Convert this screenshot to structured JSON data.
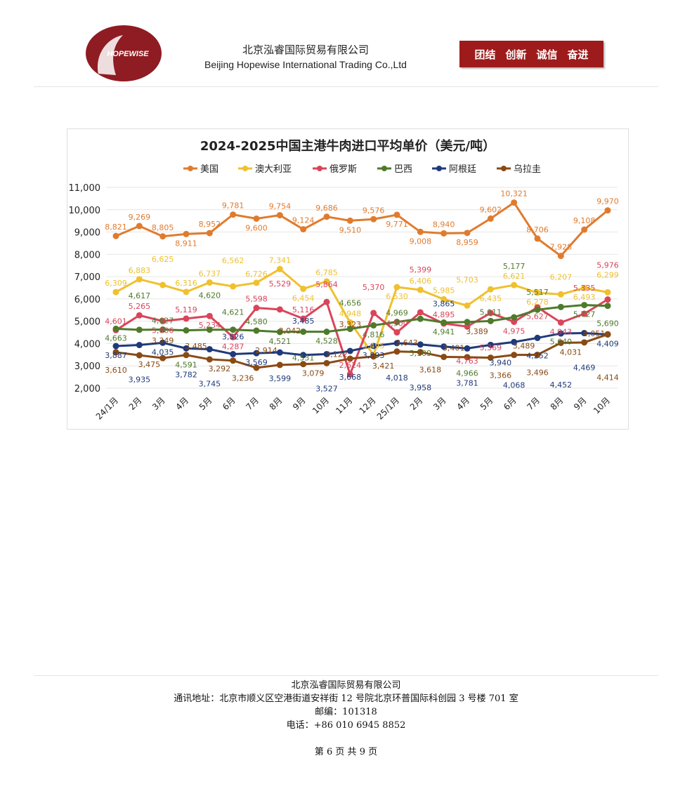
{
  "header": {
    "company_cn": "北京泓睿国际贸易有限公司",
    "company_en": "Beijing Hopewise International Trading Co.,Ltd",
    "logo_text": "HOPEWISE",
    "slogans": [
      "团结",
      "创新",
      "诚信",
      "奋进"
    ]
  },
  "chart_data": {
    "type": "line",
    "title": "2024-2025中国主港牛肉进口平均单价（美元/吨）",
    "legend_position": "top",
    "grid": true,
    "ylim": [
      2000,
      11000
    ],
    "yticks": [
      "2,000",
      "3,000",
      "4,000",
      "5,000",
      "6,000",
      "7,000",
      "8,000",
      "9,000",
      "10,000",
      "11,000"
    ],
    "categories": [
      "24/1月",
      "2月",
      "3月",
      "4月",
      "5月",
      "6月",
      "7月",
      "8月",
      "9月",
      "10月",
      "11月",
      "12月",
      "25/1月",
      "2月",
      "3月",
      "4月",
      "5月",
      "6月",
      "7月",
      "8月",
      "9月",
      "10月"
    ],
    "series": [
      {
        "name": "美国",
        "color": "#e07b2e",
        "label_pos": "above",
        "values": [
          8821,
          9269,
          8805,
          8911,
          8952,
          9781,
          9600,
          9754,
          9124,
          9686,
          9510,
          9576,
          9771,
          9008,
          8940,
          8959,
          9602,
          10321,
          8706,
          7928,
          9108,
          9970
        ]
      },
      {
        "name": "澳大利亚",
        "color": "#f0c02e",
        "label_pos": "above",
        "values": [
          6309,
          6883,
          6625,
          6316,
          6737,
          6562,
          6726,
          7341,
          6454,
          6785,
          4948,
          3495,
          6530,
          6406,
          5985,
          5703,
          6435,
          6621,
          6278,
          6207,
          6493,
          6299
        ]
      },
      {
        "name": "俄罗斯",
        "color": "#d9455a",
        "label_pos": "above",
        "values": [
          4601,
          5265,
          5006,
          5119,
          5234,
          4287,
          5598,
          5529,
          5116,
          5864,
          2624,
          5370,
          4500,
          5399,
          4895,
          4763,
          5369,
          4975,
          5627,
          4943,
          5335,
          5976
        ]
      },
      {
        "name": "巴西",
        "color": "#4e7a2a",
        "label_pos": "below",
        "values": [
          4663,
          4617,
          4627,
          4591,
          4620,
          4621,
          4580,
          4521,
          4531,
          4528,
          4656,
          4816,
          4969,
          5109,
          4941,
          4966,
          5011,
          5177,
          5517,
          5640,
          5727,
          5690
        ]
      },
      {
        "name": "阿根廷",
        "color": "#1f3a7a",
        "label_pos": "below",
        "values": [
          3887,
          3935,
          4035,
          3782,
          3745,
          3526,
          3569,
          3599,
          3485,
          3527,
          3668,
          3893,
          4018,
          3958,
          3865,
          3781,
          3940,
          4068,
          4252,
          4452,
          4469,
          4409
        ]
      },
      {
        "name": "乌拉圭",
        "color": "#8a4a14",
        "label_pos": "below",
        "values": [
          3610,
          3475,
          3349,
          3485,
          3292,
          3236,
          2914,
          3042,
          3079,
          3122,
          3323,
          3421,
          3643,
          3618,
          3401,
          3389,
          3366,
          3489,
          3496,
          4031,
          4051,
          4414
        ]
      }
    ]
  },
  "footer": {
    "company": "北京泓睿国际贸易有限公司",
    "address": "通讯地址：北京市顺义区空港街道安祥街 12 号院北京环普国际科创园 3 号楼 701 室",
    "postcode": "邮编：101318",
    "phone": "电话：+86 010 6945 8852",
    "page": "第 6 页 共 9 页"
  }
}
